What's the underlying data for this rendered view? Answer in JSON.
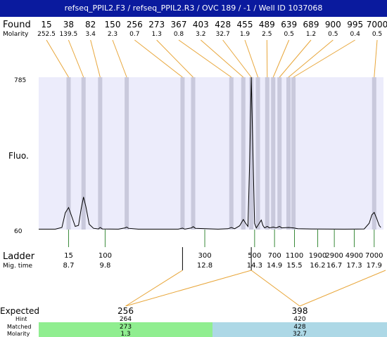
{
  "title": "refseq_PPIL2.F3 / refseq_PPIL2.R3 / OVC 189 / -1 / Well ID 1037068",
  "labels": {
    "found": "Found",
    "molarity": "Molarity",
    "fluo": "Fluo.",
    "ladder": "Ladder",
    "mig_time": "Mig. time",
    "expected": "Expected",
    "hint": "Hint",
    "matched": "Matched",
    "molarity_bottom": "Molarity"
  },
  "colors": {
    "title_bg": "#0a1a9e",
    "plot_bg": "#ececfb",
    "band": "#c9c9dc",
    "connector": "#e8a63a",
    "ladder_tick": "#3a8a3a",
    "matched_left": "#90ee90",
    "matched_right": "#add8e6"
  },
  "chart_data": {
    "type": "line",
    "ylabel": "Fluo.",
    "ylim": [
      60,
      785
    ],
    "y_ticks": [
      "785",
      "60"
    ],
    "found_peaks": [
      {
        "size": "15",
        "molarity": "252.5",
        "mig_time": 8.7
      },
      {
        "size": "38",
        "molarity": "139.5",
        "mig_time": 9.15
      },
      {
        "size": "82",
        "molarity": "3.4",
        "mig_time": 9.65
      },
      {
        "size": "150",
        "molarity": "2.3",
        "mig_time": 10.45
      },
      {
        "size": "256",
        "molarity": "0.7",
        "mig_time": 12.13
      },
      {
        "size": "273",
        "molarity": "1.3",
        "mig_time": 12.45
      },
      {
        "size": "367",
        "molarity": "0.8",
        "mig_time": 13.6
      },
      {
        "size": "403",
        "molarity": "3.2",
        "mig_time": 13.96
      },
      {
        "size": "428",
        "molarity": "32.7",
        "mig_time": 14.2
      },
      {
        "size": "455",
        "molarity": "1.9",
        "mig_time": 14.4
      },
      {
        "size": "489",
        "molarity": "2.5",
        "mig_time": 14.68
      },
      {
        "size": "639",
        "molarity": "0.5",
        "mig_time": 14.86
      },
      {
        "size": "689",
        "molarity": "1.2",
        "mig_time": 15.05
      },
      {
        "size": "900",
        "molarity": "0.5",
        "mig_time": 15.32
      },
      {
        "size": "995",
        "molarity": "0.4",
        "mig_time": 15.47
      },
      {
        "size": "7000",
        "molarity": "0.5",
        "mig_time": 17.9
      }
    ],
    "ladder": [
      {
        "size": "15",
        "mig_time": "8.7"
      },
      {
        "size": "100",
        "mig_time": "9.8"
      },
      {
        "size": "300",
        "mig_time": "12.8"
      },
      {
        "size": "500",
        "mig_time": "14.3"
      },
      {
        "size": "700",
        "mig_time": "14.9"
      },
      {
        "size": "1100",
        "mig_time": "15.5"
      },
      {
        "size": "1900",
        "mig_time": "16.2"
      },
      {
        "size": "2900",
        "mig_time": "16.7"
      },
      {
        "size": "4900",
        "mig_time": "17.3"
      },
      {
        "size": "7000",
        "mig_time": "17.9"
      }
    ],
    "trace": [
      [
        7.8,
        62
      ],
      [
        8.3,
        62
      ],
      [
        8.5,
        70
      ],
      [
        8.6,
        140
      ],
      [
        8.7,
        165
      ],
      [
        8.8,
        120
      ],
      [
        8.9,
        75
      ],
      [
        9.0,
        80
      ],
      [
        9.08,
        160
      ],
      [
        9.15,
        215
      ],
      [
        9.22,
        170
      ],
      [
        9.32,
        85
      ],
      [
        9.45,
        66
      ],
      [
        9.6,
        63
      ],
      [
        9.65,
        70
      ],
      [
        9.72,
        63
      ],
      [
        10.2,
        62
      ],
      [
        10.4,
        68
      ],
      [
        10.45,
        72
      ],
      [
        10.5,
        66
      ],
      [
        10.8,
        62
      ],
      [
        12.0,
        62
      ],
      [
        12.13,
        67
      ],
      [
        12.2,
        62
      ],
      [
        12.4,
        68
      ],
      [
        12.45,
        74
      ],
      [
        12.52,
        66
      ],
      [
        13.2,
        62
      ],
      [
        13.5,
        64
      ],
      [
        13.6,
        70
      ],
      [
        13.7,
        64
      ],
      [
        13.85,
        78
      ],
      [
        13.96,
        108
      ],
      [
        14.03,
        90
      ],
      [
        14.1,
        75
      ],
      [
        14.15,
        380
      ],
      [
        14.2,
        785
      ],
      [
        14.25,
        420
      ],
      [
        14.3,
        90
      ],
      [
        14.35,
        68
      ],
      [
        14.4,
        80
      ],
      [
        14.5,
        105
      ],
      [
        14.55,
        80
      ],
      [
        14.6,
        68
      ],
      [
        14.68,
        75
      ],
      [
        14.75,
        68
      ],
      [
        14.86,
        72
      ],
      [
        14.95,
        68
      ],
      [
        15.05,
        75
      ],
      [
        15.12,
        68
      ],
      [
        15.32,
        70
      ],
      [
        15.47,
        68
      ],
      [
        15.6,
        64
      ],
      [
        16.0,
        63
      ],
      [
        17.0,
        62
      ],
      [
        17.6,
        63
      ],
      [
        17.75,
        90
      ],
      [
        17.83,
        130
      ],
      [
        17.9,
        142
      ],
      [
        17.97,
        115
      ],
      [
        18.05,
        80
      ],
      [
        18.1,
        70
      ]
    ],
    "expected_regions": [
      {
        "expected": "256",
        "hint": "264",
        "matched": "273",
        "molarity": "1.3",
        "range_start": 12.13,
        "range_end": 14.2
      },
      {
        "expected": "398",
        "hint": "420",
        "matched": "428",
        "molarity": "32.7",
        "range_start": 14.2,
        "range_end": 18.5
      }
    ]
  }
}
